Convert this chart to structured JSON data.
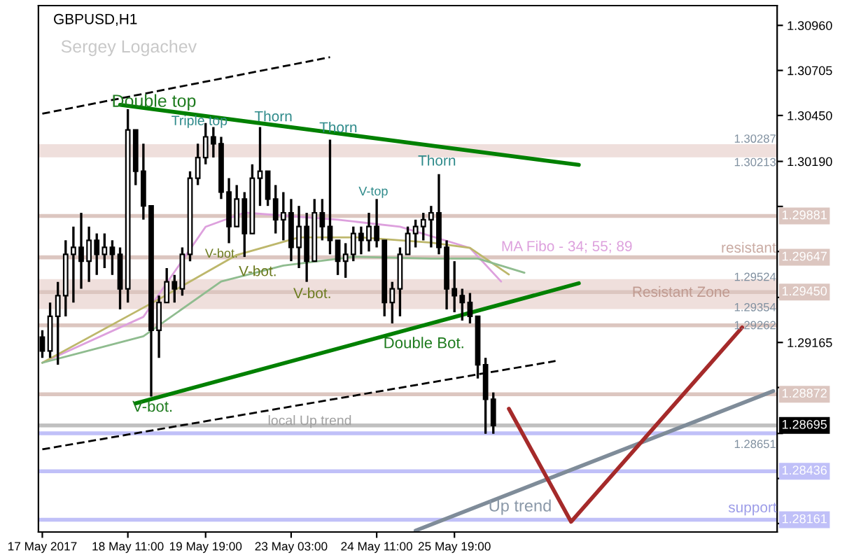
{
  "chart_data": {
    "type": "candlestick",
    "title": "GBPUSD,H1",
    "subtitle": "Sergey Logachev",
    "categories": [
      "17 May 2017",
      null,
      null,
      null,
      null,
      null,
      null,
      null,
      null,
      null,
      null,
      "18 May 11:00",
      null,
      null,
      null,
      null,
      null,
      null,
      null,
      null,
      null,
      "19 May 19:00",
      null,
      null,
      null,
      null,
      null,
      null,
      null,
      null,
      null,
      null,
      "23 May 03:00",
      null,
      null,
      null,
      null,
      null,
      null,
      null,
      null,
      null,
      null,
      "24 May 11:00",
      null,
      null,
      null,
      null,
      null,
      null,
      null,
      null,
      null,
      "25 May 19:00",
      null,
      null,
      null,
      null,
      null,
      null,
      null,
      null,
      null,
      null,
      null,
      null,
      null,
      null,
      null,
      null,
      null,
      null,
      null,
      null,
      null,
      null,
      null,
      null,
      null,
      null,
      null,
      null,
      null,
      null,
      null,
      null,
      null,
      null,
      null,
      null,
      null,
      null,
      null,
      null,
      null
    ],
    "ohlc": [
      [
        1.29195,
        1.29234,
        1.29078,
        1.29117
      ],
      [
        1.29117,
        1.29391,
        1.29078,
        1.29313
      ],
      [
        1.29313,
        1.29508,
        1.29039,
        1.2943
      ],
      [
        1.2943,
        1.29743,
        1.29313,
        1.29664
      ],
      [
        1.29664,
        1.29821,
        1.29391,
        1.29703
      ],
      [
        1.29703,
        1.29899,
        1.29469,
        1.29625
      ],
      [
        1.29625,
        1.29821,
        1.29508,
        1.29743
      ],
      [
        1.29743,
        1.29782,
        1.29547,
        1.29664
      ],
      [
        1.29664,
        1.29782,
        1.29586,
        1.29703
      ],
      [
        1.29703,
        1.29743,
        1.29547,
        1.29664
      ],
      [
        1.29664,
        1.29703,
        1.29352,
        1.29469
      ],
      [
        1.29469,
        1.30486,
        1.29391,
        1.30368
      ],
      [
        1.30368,
        1.30368,
        1.30056,
        1.30134
      ],
      [
        1.30134,
        1.3029,
        1.2986,
        1.29938
      ],
      [
        1.29938,
        1.29938,
        1.28859,
        1.29234
      ],
      [
        1.29234,
        1.2943,
        1.29078,
        1.29391
      ],
      [
        1.29391,
        1.29586,
        1.29391,
        1.29508
      ],
      [
        1.29508,
        1.29547,
        1.29391,
        1.29469
      ],
      [
        1.29469,
        1.29703,
        1.2943,
        1.29664
      ],
      [
        1.29664,
        1.30134,
        1.29625,
        1.30095
      ],
      [
        1.30095,
        1.3029,
        1.30056,
        1.30212
      ],
      [
        1.30212,
        1.30407,
        1.30173,
        1.30329
      ],
      [
        1.30329,
        1.30384,
        1.30212,
        1.3029
      ],
      [
        1.3029,
        1.30329,
        1.29977,
        1.30016
      ],
      [
        1.30016,
        1.30095,
        1.29727,
        1.29821
      ],
      [
        1.29821,
        1.30056,
        1.29821,
        1.29977
      ],
      [
        1.29977,
        1.30016,
        1.29649,
        1.29782
      ],
      [
        1.29782,
        1.30173,
        1.29782,
        1.30095
      ],
      [
        1.30095,
        1.30384,
        1.29938,
        1.30134
      ],
      [
        1.30134,
        1.30134,
        1.29938,
        1.29977
      ],
      [
        1.29977,
        1.30056,
        1.29782,
        1.2986
      ],
      [
        1.2986,
        1.30016,
        1.29743,
        1.29899
      ],
      [
        1.29899,
        1.29977,
        1.29625,
        1.29703
      ],
      [
        1.29703,
        1.29938,
        1.29586,
        1.29821
      ],
      [
        1.29821,
        1.29899,
        1.29508,
        1.29625
      ],
      [
        1.29625,
        1.29977,
        1.29625,
        1.29899
      ],
      [
        1.29899,
        1.29977,
        1.29743,
        1.29821
      ],
      [
        1.29821,
        1.30313,
        1.29664,
        1.29743
      ],
      [
        1.29743,
        1.29743,
        1.29547,
        1.29625
      ],
      [
        1.29625,
        1.29727,
        1.29531,
        1.29664
      ],
      [
        1.29664,
        1.29821,
        1.29625,
        1.29782
      ],
      [
        1.29782,
        1.29821,
        1.29664,
        1.29743
      ],
      [
        1.29743,
        1.29899,
        1.2968,
        1.29821
      ],
      [
        1.29821,
        1.29977,
        1.29703,
        1.29743
      ],
      [
        1.29743,
        1.29743,
        1.29313,
        1.29391
      ],
      [
        1.29391,
        1.29508,
        1.29273,
        1.29469
      ],
      [
        1.29469,
        1.29703,
        1.29313,
        1.29664
      ],
      [
        1.29664,
        1.29821,
        1.29664,
        1.29782
      ],
      [
        1.29782,
        1.2986,
        1.29703,
        1.29821
      ],
      [
        1.29821,
        1.29899,
        1.29743,
        1.2986
      ],
      [
        1.2986,
        1.29938,
        1.29703,
        1.29899
      ],
      [
        1.29899,
        1.30118,
        1.29664,
        1.29703
      ],
      [
        1.29703,
        1.29743,
        1.29352,
        1.29469
      ],
      [
        1.29469,
        1.29625,
        1.29336,
        1.2943
      ],
      [
        1.2943,
        1.29469,
        1.29289,
        1.29391
      ],
      [
        1.29391,
        1.29445,
        1.29273,
        1.29313
      ],
      [
        1.29313,
        1.29313,
        1.28961,
        1.29039
      ],
      [
        1.29039,
        1.29078,
        1.28648,
        1.28843
      ],
      [
        1.28843,
        1.28882,
        1.28648,
        1.28695
      ],
      null,
      null,
      null,
      null,
      null,
      null,
      null,
      null,
      null,
      null,
      null,
      null,
      null,
      null,
      null,
      null,
      null,
      null,
      null,
      null,
      null,
      null,
      null,
      null,
      null,
      null,
      null,
      null,
      null,
      null,
      null,
      null,
      null,
      null,
      null,
      null
    ],
    "series": [
      {
        "type": "line",
        "color": "#008000",
        "line_style": "solid",
        "values": [
          null,
          null,
          null,
          null,
          null,
          null,
          null,
          null,
          null,
          null,
          1.3051,
          null,
          null,
          null,
          null,
          null,
          null,
          null,
          null,
          null,
          null,
          null,
          null,
          null,
          null,
          null,
          null,
          null,
          null,
          null,
          null,
          null,
          null,
          null,
          null,
          null,
          null,
          null,
          null,
          null,
          null,
          null,
          null,
          null,
          null,
          null,
          null,
          null,
          null,
          null,
          null,
          null,
          null,
          null,
          null,
          null,
          null,
          null,
          null,
          null,
          null,
          null,
          null,
          null,
          null,
          null,
          null,
          null,
          null,
          1.3017,
          null,
          null,
          null,
          null,
          null,
          null,
          null,
          null,
          null,
          null,
          null,
          null,
          null,
          null,
          null,
          null,
          null,
          null,
          null,
          null,
          null,
          null,
          null,
          null,
          null
        ]
      },
      {
        "type": "line",
        "color": "#008000",
        "line_style": "solid",
        "values": [
          null,
          null,
          null,
          null,
          null,
          null,
          null,
          null,
          null,
          null,
          null,
          null,
          1.2882,
          null,
          null,
          null,
          null,
          null,
          null,
          null,
          null,
          null,
          null,
          null,
          null,
          null,
          null,
          null,
          null,
          null,
          null,
          null,
          null,
          null,
          null,
          null,
          null,
          null,
          null,
          null,
          null,
          null,
          null,
          null,
          null,
          null,
          null,
          null,
          null,
          null,
          null,
          null,
          null,
          null,
          null,
          null,
          null,
          null,
          null,
          null,
          null,
          null,
          null,
          null,
          null,
          null,
          null,
          null,
          null,
          1.295,
          null,
          null,
          null,
          null,
          null,
          null,
          null,
          null,
          null,
          null,
          null,
          null,
          null,
          null,
          null,
          null,
          null,
          null,
          null,
          null,
          null,
          null,
          null,
          null,
          null
        ]
      },
      {
        "type": "line",
        "color": "#000000",
        "line_style": "dashed",
        "values": [
          1.3046,
          null,
          null,
          null,
          null,
          null,
          null,
          null,
          null,
          null,
          null,
          null,
          null,
          null,
          null,
          null,
          null,
          null,
          null,
          null,
          null,
          null,
          null,
          null,
          null,
          null,
          null,
          null,
          null,
          null,
          null,
          null,
          null,
          null,
          null,
          null,
          null,
          1.3078,
          null,
          null,
          null,
          null,
          null,
          null,
          null,
          null,
          null,
          null,
          null,
          null,
          null,
          null,
          null,
          null,
          null,
          null,
          null,
          null,
          null,
          null,
          null,
          null,
          null,
          null,
          null,
          null,
          null,
          null,
          null,
          null,
          null,
          null,
          null,
          null,
          null,
          null,
          null,
          null,
          null,
          null,
          null,
          null,
          null,
          null,
          null,
          null,
          null,
          null,
          null,
          null,
          null,
          null,
          null,
          null,
          null
        ]
      },
      {
        "type": "line",
        "color": "#000000",
        "line_style": "dashed",
        "values": [
          1.2856,
          null,
          null,
          null,
          null,
          null,
          null,
          null,
          null,
          null,
          null,
          null,
          null,
          null,
          null,
          null,
          null,
          null,
          null,
          null,
          null,
          null,
          null,
          null,
          null,
          null,
          null,
          null,
          null,
          null,
          null,
          null,
          null,
          null,
          null,
          null,
          null,
          null,
          null,
          null,
          null,
          null,
          null,
          null,
          null,
          null,
          null,
          null,
          null,
          null,
          null,
          null,
          null,
          null,
          null,
          null,
          null,
          null,
          null,
          null,
          null,
          null,
          null,
          null,
          null,
          null,
          1.2906,
          null,
          null,
          null,
          null,
          null,
          null,
          null,
          null,
          null,
          null,
          null,
          null,
          null,
          null,
          null,
          null,
          null,
          null,
          null,
          null,
          null,
          null,
          null,
          null,
          null,
          null,
          null,
          null
        ]
      },
      {
        "type": "line",
        "color": "#7f8c99",
        "line_style": "solid",
        "values": [
          null,
          null,
          null,
          null,
          null,
          null,
          null,
          null,
          null,
          null,
          null,
          null,
          null,
          null,
          null,
          null,
          null,
          null,
          null,
          null,
          null,
          null,
          null,
          null,
          null,
          null,
          null,
          null,
          null,
          null,
          null,
          null,
          null,
          null,
          null,
          null,
          null,
          null,
          null,
          null,
          null,
          null,
          null,
          null,
          null,
          null,
          null,
          null,
          1.281,
          null,
          null,
          null,
          null,
          null,
          null,
          null,
          null,
          null,
          null,
          null,
          null,
          null,
          null,
          null,
          null,
          null,
          null,
          null,
          null,
          null,
          null,
          null,
          null,
          null,
          null,
          null,
          null,
          null,
          null,
          null,
          null,
          null,
          null,
          null,
          null,
          null,
          null,
          null,
          null,
          null,
          null,
          null,
          null,
          null,
          1.2889
        ]
      },
      {
        "type": "line",
        "color": "#a52a2a",
        "line_style": "solid",
        "values": [
          null,
          null,
          null,
          null,
          null,
          null,
          null,
          null,
          null,
          null,
          null,
          null,
          null,
          null,
          null,
          null,
          null,
          null,
          null,
          null,
          null,
          null,
          null,
          null,
          null,
          null,
          null,
          null,
          null,
          null,
          null,
          null,
          null,
          null,
          null,
          null,
          null,
          null,
          null,
          null,
          null,
          null,
          null,
          null,
          null,
          null,
          null,
          null,
          null,
          null,
          null,
          null,
          null,
          null,
          null,
          null,
          null,
          null,
          null,
          null,
          1.2879,
          null,
          null,
          null,
          null,
          null,
          null,
          null,
          1.2815,
          null,
          null,
          null,
          null,
          null,
          null,
          null,
          null,
          null,
          null,
          null,
          null,
          null,
          null,
          null,
          null,
          null,
          null,
          null,
          null,
          null,
          1.2925,
          null,
          null,
          null,
          null
        ]
      },
      {
        "type": "line",
        "color": "#dda0dd",
        "line_style": "solid",
        "values": [
          1.2905,
          null,
          null,
          null,
          null,
          null,
          null,
          null,
          null,
          null,
          null,
          null,
          null,
          1.2931,
          null,
          null,
          null,
          null,
          null,
          null,
          null,
          1.2982,
          null,
          null,
          null,
          null,
          1.299,
          null,
          null,
          null,
          null,
          null,
          null,
          null,
          null,
          null,
          null,
          null,
          1.2986,
          null,
          null,
          null,
          null,
          null,
          null,
          null,
          1.2982,
          null,
          null,
          null,
          null,
          null,
          null,
          null,
          null,
          1.297,
          null,
          null,
          null,
          1.2951,
          null,
          null,
          null,
          null,
          null,
          null,
          null,
          null,
          null,
          null,
          null,
          null,
          null,
          null,
          null,
          null,
          null,
          null,
          null,
          null,
          null,
          null,
          null,
          null,
          null,
          null,
          null,
          null,
          null,
          null,
          null,
          null,
          null,
          null,
          null
        ]
      },
      {
        "type": "line",
        "color": "#bdb76b",
        "line_style": "solid",
        "values": [
          1.2905,
          null,
          null,
          null,
          null,
          null,
          null,
          null,
          null,
          null,
          null,
          null,
          null,
          null,
          null,
          1.2941,
          null,
          null,
          null,
          null,
          null,
          null,
          null,
          null,
          null,
          1.2966,
          null,
          null,
          null,
          null,
          null,
          null,
          null,
          1.2976,
          null,
          null,
          null,
          null,
          null,
          null,
          null,
          1.2976,
          null,
          null,
          null,
          null,
          null,
          null,
          null,
          null,
          1.2973,
          null,
          null,
          null,
          null,
          1.297,
          null,
          null,
          null,
          null,
          1.2955,
          null,
          null,
          null,
          null,
          null,
          null,
          null,
          null,
          null,
          null,
          null,
          null,
          null,
          null,
          null,
          null,
          null,
          null,
          null,
          null,
          null,
          null,
          null,
          null,
          null,
          null,
          null,
          null,
          null,
          null,
          null,
          null,
          null,
          null
        ]
      },
      {
        "type": "line",
        "color": "#8fbc8f",
        "line_style": "solid",
        "values": [
          1.2905,
          null,
          null,
          null,
          null,
          null,
          null,
          null,
          null,
          null,
          null,
          null,
          null,
          1.292,
          null,
          null,
          null,
          null,
          null,
          null,
          null,
          null,
          null,
          1.2951,
          null,
          null,
          null,
          null,
          null,
          null,
          null,
          1.296,
          null,
          null,
          null,
          null,
          null,
          null,
          null,
          null,
          1.2965,
          null,
          null,
          null,
          null,
          null,
          null,
          null,
          null,
          null,
          1.2964,
          null,
          null,
          null,
          null,
          null,
          1.2964,
          null,
          null,
          null,
          null,
          null,
          1.2956,
          null,
          null,
          null,
          null,
          null,
          null,
          null,
          null,
          null,
          null,
          null,
          null,
          null,
          null,
          null,
          null,
          null,
          null,
          null,
          null,
          null,
          null,
          null,
          null,
          null,
          null,
          null,
          null,
          null,
          null,
          null,
          null
        ]
      }
    ],
    "bands": [
      {
        "axis": "y",
        "from": 1.30213,
        "to": 1.30287,
        "color": "#efdfdc"
      },
      {
        "axis": "y",
        "from": 1.29354,
        "to": 1.29524,
        "color": "#efdfdc"
      }
    ],
    "ref_lines": [
      {
        "axis": "y",
        "value": 1.29881,
        "label": "1.29881",
        "color": "#dcc6c0"
      },
      {
        "axis": "y",
        "value": 1.29647,
        "label": "1.29647",
        "color": "#dcc6c0"
      },
      {
        "axis": "y",
        "value": 1.2945,
        "label": "1.29450",
        "color": "#dcc6c0"
      },
      {
        "axis": "y",
        "value": 1.29262,
        "color": "#dcc6c0"
      },
      {
        "axis": "y",
        "value": 1.28872,
        "label": "1.28872",
        "color": "#dcc6c0"
      },
      {
        "axis": "y",
        "value": 1.28695,
        "label": "1.28695",
        "color": "#c0c0c0"
      },
      {
        "axis": "y",
        "value": 1.28651,
        "color": "#c0c0f8"
      },
      {
        "axis": "y",
        "value": 1.28436,
        "label": "1.28436",
        "color": "#c0c0f8"
      },
      {
        "axis": "y",
        "value": 1.28161,
        "label": "1.28161",
        "color": "#c0c0f8"
      }
    ],
    "annotations": [
      "Double top",
      "Triple top",
      "Thorn",
      "Thorn",
      "Thorn",
      "V-top",
      "V-bot.",
      "V-bot.",
      "V-bot.",
      "Double Bot.",
      "V-bot.",
      "MA Fibo - 34; 55; 89",
      "resistant",
      "Resistant Zone",
      "support",
      "local Up trend",
      "Up trend",
      "1.30287",
      "1.30213",
      "1.29524",
      "1.29354",
      "1.29262",
      "1.28651"
    ],
    "ylim": [
      1.28092,
      1.31072
    ],
    "yticks": [
      {
        "value": 1.3096,
        "label": "1.30960"
      },
      {
        "value": 1.30705,
        "label": "1.30705"
      },
      {
        "value": 1.3045,
        "label": "1.30450"
      },
      {
        "value": 1.3019,
        "label": "1.30190"
      },
      {
        "value": 1.29935,
        "label": null
      },
      {
        "value": 1.2968,
        "label": null
      },
      {
        "value": 1.2942,
        "label": null
      },
      {
        "value": 1.29165,
        "label": "1.29165"
      },
      {
        "value": 1.2891,
        "label": null
      },
      {
        "value": 1.2865,
        "label": null
      },
      {
        "value": 1.28395,
        "label": null
      },
      {
        "value": 1.2814,
        "label": null
      }
    ],
    "grid": false,
    "legend": false
  }
}
